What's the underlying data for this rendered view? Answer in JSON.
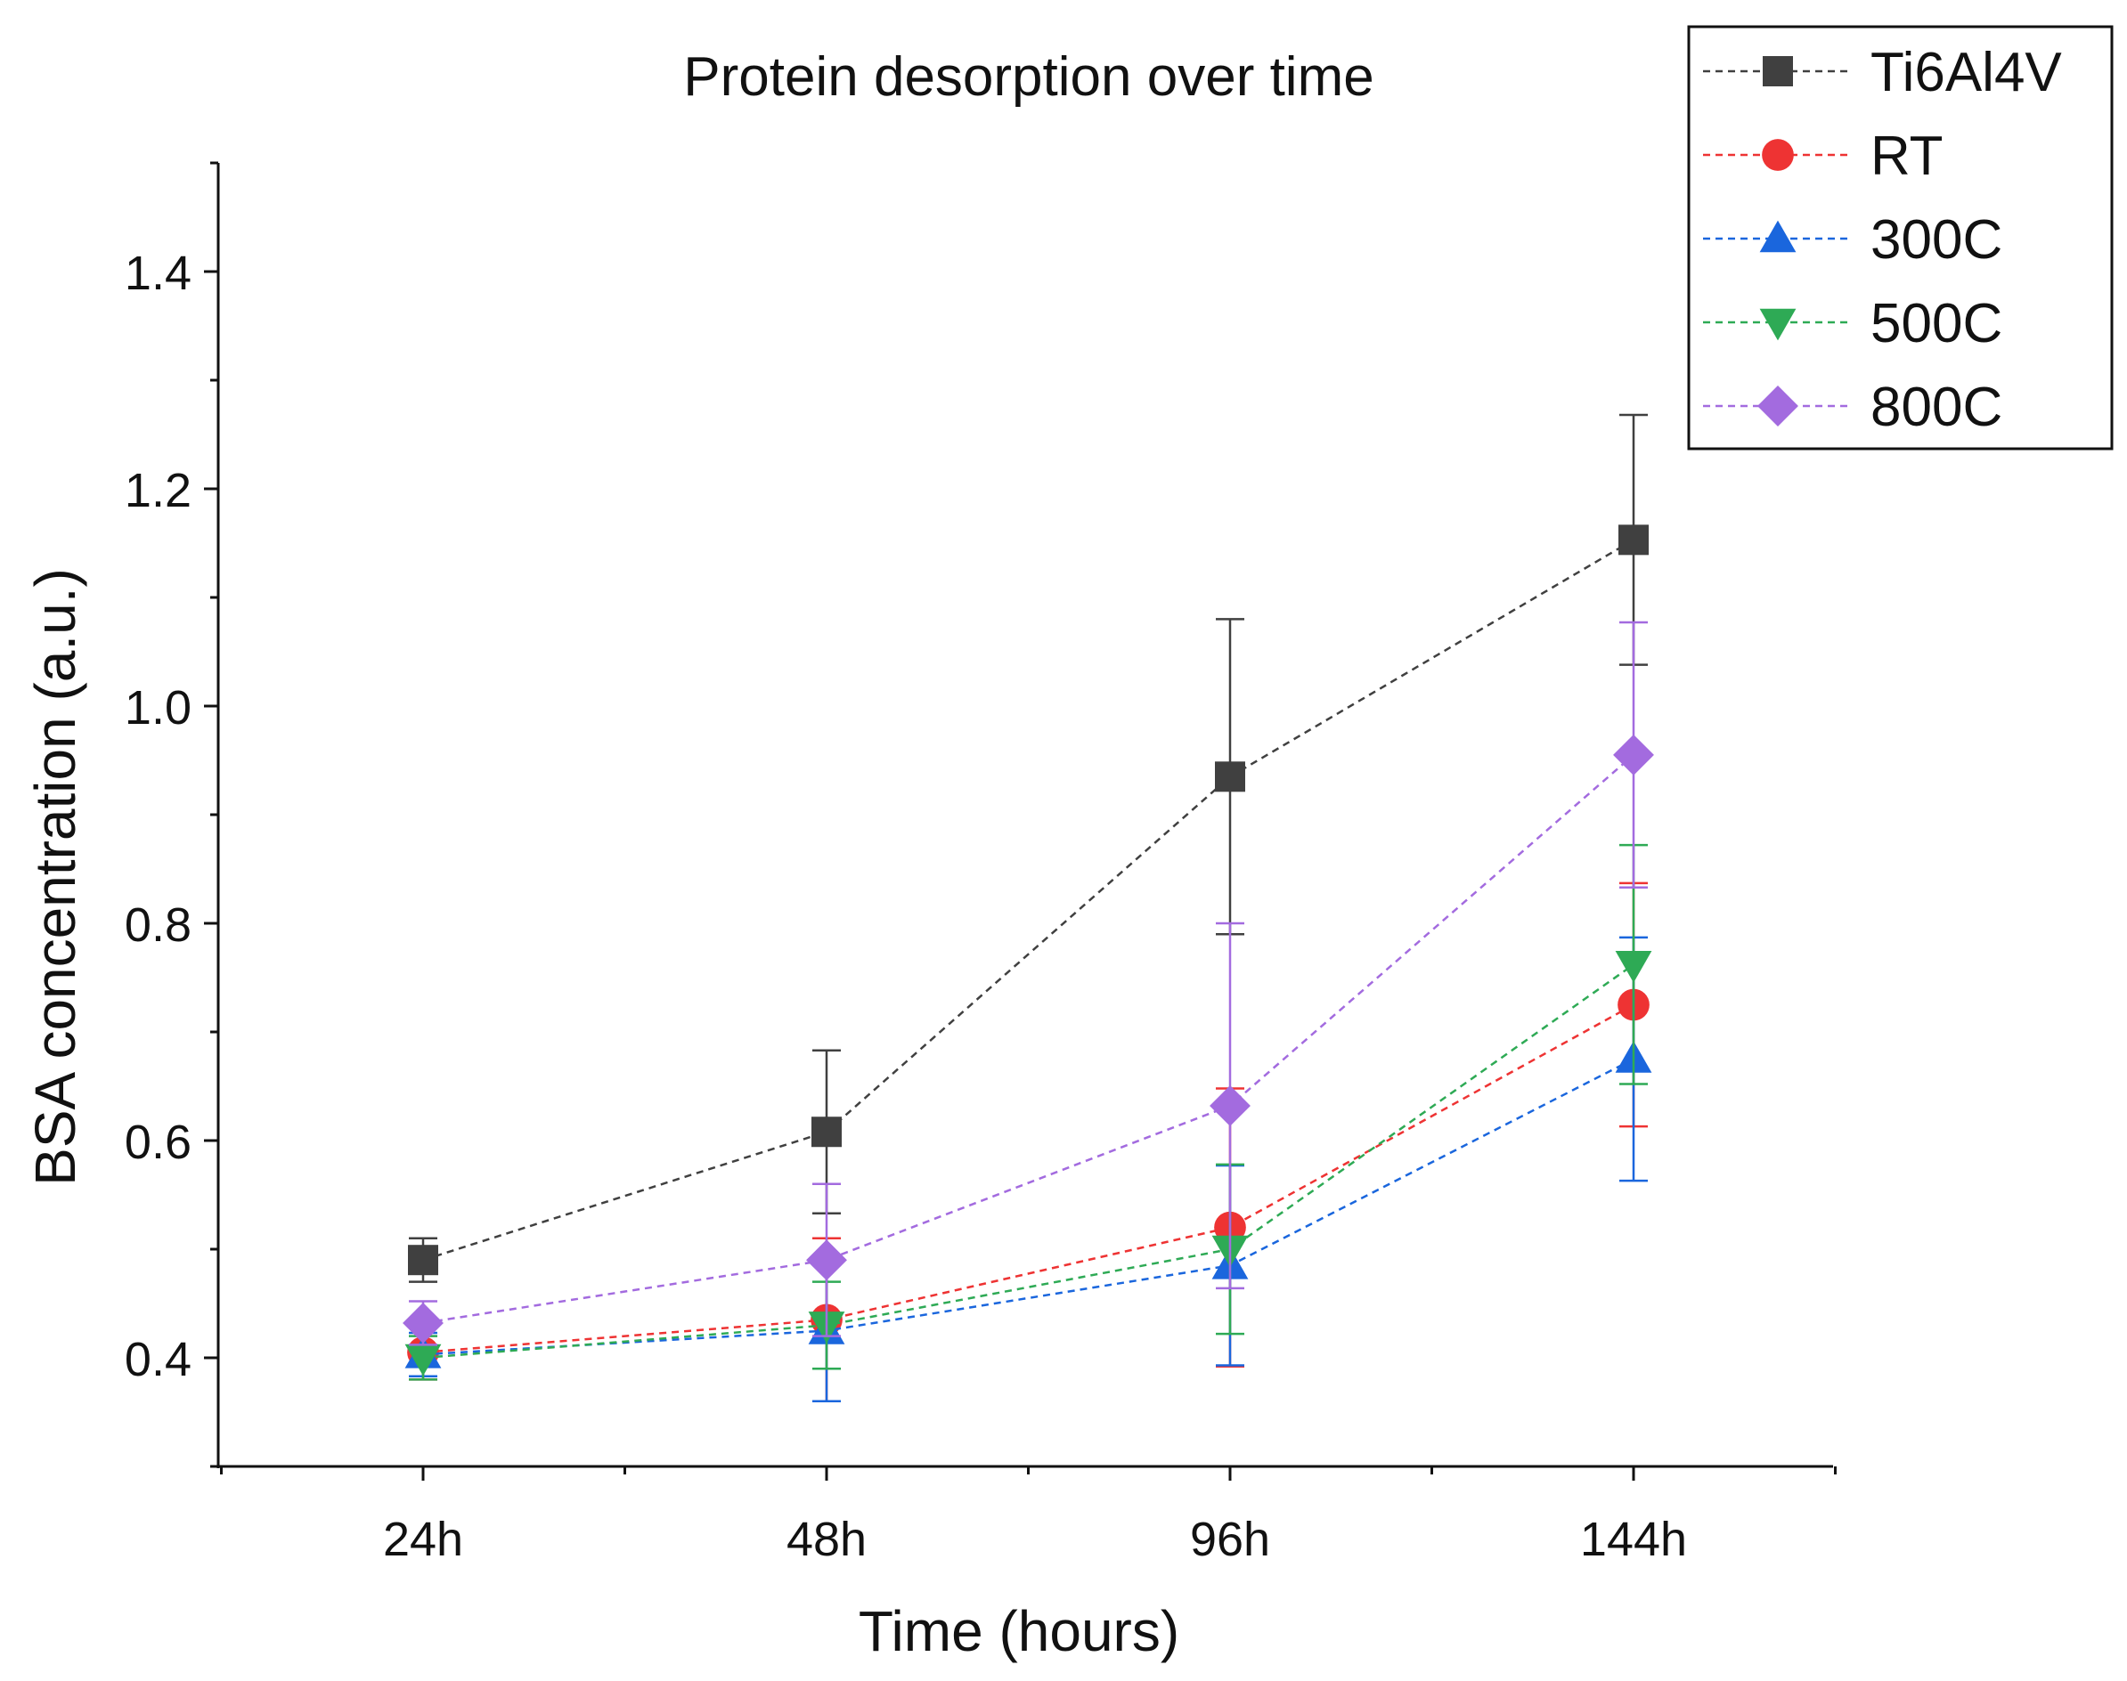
{
  "chart_data": {
    "type": "line",
    "title": "Protein desorption over time",
    "xlabel": "Time (hours)",
    "ylabel": "BSA concentration (a.u.)",
    "categories": [
      "24h",
      "48h",
      "96h",
      "144h"
    ],
    "ylim": [
      0.3,
      1.5
    ],
    "yticks": [
      0.4,
      0.6,
      0.8,
      1.0,
      1.2,
      1.4
    ],
    "ytick_labels": [
      "0.4",
      "0.6",
      "0.8",
      "1.0",
      "1.2",
      "1.4"
    ],
    "grid": false,
    "legend_position": "top-right",
    "series": [
      {
        "name": "Ti6Al4V",
        "color": "#404040",
        "marker": "square",
        "values": [
          0.49,
          0.608,
          0.935,
          1.153
        ],
        "errors": [
          0.02,
          0.075,
          0.145,
          0.115
        ]
      },
      {
        "name": "RT",
        "color": "#ee3333",
        "marker": "circle",
        "values": [
          0.405,
          0.435,
          0.52,
          0.725
        ],
        "errors": [
          0.025,
          0.075,
          0.128,
          0.112
        ]
      },
      {
        "name": "300C",
        "color": "#1a66dd",
        "marker": "triangle-up",
        "values": [
          0.403,
          0.425,
          0.485,
          0.675
        ],
        "errors": [
          0.02,
          0.065,
          0.092,
          0.112
        ]
      },
      {
        "name": "500C",
        "color": "#2eaa55",
        "marker": "triangle-down",
        "values": [
          0.4,
          0.43,
          0.5,
          0.762
        ],
        "errors": [
          0.02,
          0.04,
          0.078,
          0.11
        ]
      },
      {
        "name": "800C",
        "color": "#a36bdf",
        "marker": "diamond",
        "values": [
          0.432,
          0.49,
          0.632,
          0.955
        ],
        "errors": [
          0.02,
          0.07,
          0.168,
          0.122
        ]
      }
    ]
  }
}
